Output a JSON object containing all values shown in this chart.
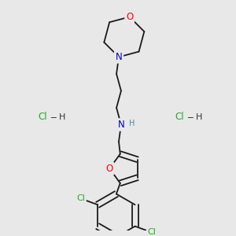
{
  "background_color": "#e8e8e8",
  "bond_color": "#1a1a1a",
  "atom_colors": {
    "O": "#ff0000",
    "N": "#0000cc",
    "Cl": "#22aa22",
    "H": "#1a1a1a",
    "C": "#1a1a1a"
  },
  "font_size_atoms": 8.5,
  "lw": 1.3
}
